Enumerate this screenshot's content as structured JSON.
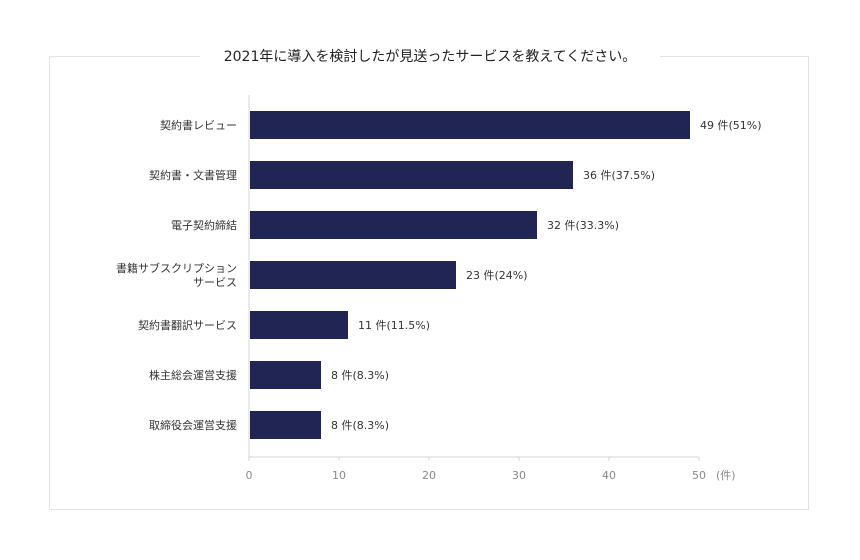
{
  "chart_data": {
    "type": "bar",
    "orientation": "horizontal",
    "title": "2021年に導入を検討したが見送ったサービスを教えてください。",
    "categories": [
      "契約書レビュー",
      "契約書・文書管理",
      "電子契約締結",
      "書籍サブスクリプションサービス",
      "契約書翻訳サービス",
      "株主総会運営支援",
      "取締役会運営支援"
    ],
    "category_lines": [
      [
        "契約書レビュー"
      ],
      [
        "契約書・文書管理"
      ],
      [
        "電子契約締結"
      ],
      [
        "書籍サブスクリプション",
        "サービス"
      ],
      [
        "契約書翻訳サービス"
      ],
      [
        "株主総会運営支援"
      ],
      [
        "取締役会運営支援"
      ]
    ],
    "values": [
      49,
      36,
      32,
      23,
      11,
      8,
      8
    ],
    "data_labels": [
      "49 件(51%)",
      "36 件(37.5%)",
      "32 件(33.3%)",
      "23 件(24%)",
      "11 件(11.5%)",
      "8 件(8.3%)",
      "8 件(8.3%)"
    ],
    "xlim": [
      0,
      50
    ],
    "xticks": [
      0,
      10,
      20,
      30,
      40,
      50
    ],
    "xunit": "(件)",
    "grid": false,
    "colors": {
      "bar": "#212554",
      "axis": "#d6d6d6",
      "tick_text": "#888888",
      "label_text": "#333333"
    }
  }
}
